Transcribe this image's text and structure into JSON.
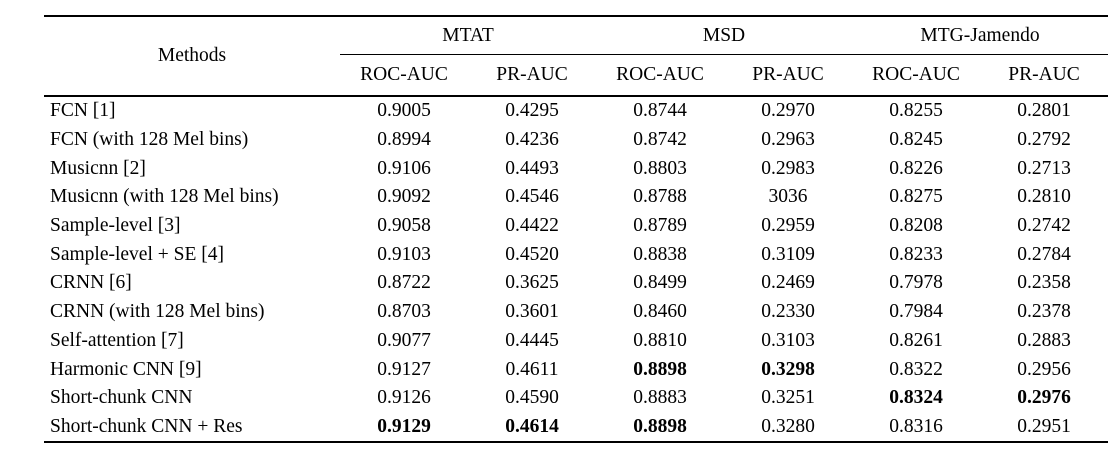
{
  "table": {
    "methods_header": "Methods",
    "groups": [
      {
        "label": "MTAT"
      },
      {
        "label": "MSD"
      },
      {
        "label": "MTG-Jamendo"
      }
    ],
    "subheaders": [
      "ROC-AUC",
      "PR-AUC",
      "ROC-AUC",
      "PR-AUC",
      "ROC-AUC",
      "PR-AUC"
    ],
    "rows": [
      {
        "method": "FCN [1]",
        "values": [
          "0.9005",
          "0.4295",
          "0.8744",
          "0.2970",
          "0.8255",
          "0.2801"
        ],
        "bold": []
      },
      {
        "method": "FCN (with 128 Mel bins)",
        "values": [
          "0.8994",
          "0.4236",
          "0.8742",
          "0.2963",
          "0.8245",
          "0.2792"
        ],
        "bold": []
      },
      {
        "method": "Musicnn [2]",
        "values": [
          "0.9106",
          "0.4493",
          "0.8803",
          "0.2983",
          "0.8226",
          "0.2713"
        ],
        "bold": []
      },
      {
        "method": "Musicnn (with 128 Mel bins)",
        "values": [
          "0.9092",
          "0.4546",
          "0.8788",
          "3036",
          "0.8275",
          "0.2810"
        ],
        "bold": []
      },
      {
        "method": "Sample-level [3]",
        "values": [
          "0.9058",
          "0.4422",
          "0.8789",
          "0.2959",
          "0.8208",
          "0.2742"
        ],
        "bold": []
      },
      {
        "method": "Sample-level + SE [4]",
        "values": [
          "0.9103",
          "0.4520",
          "0.8838",
          "0.3109",
          "0.8233",
          "0.2784"
        ],
        "bold": []
      },
      {
        "method": "CRNN [6]",
        "values": [
          "0.8722",
          "0.3625",
          "0.8499",
          "0.2469",
          "0.7978",
          "0.2358"
        ],
        "bold": []
      },
      {
        "method": "CRNN (with 128 Mel bins)",
        "values": [
          "0.8703",
          "0.3601",
          "0.8460",
          "0.2330",
          "0.7984",
          "0.2378"
        ],
        "bold": []
      },
      {
        "method": "Self-attention [7]",
        "values": [
          "0.9077",
          "0.4445",
          "0.8810",
          "0.3103",
          "0.8261",
          "0.2883"
        ],
        "bold": []
      },
      {
        "method": "Harmonic CNN [9]",
        "values": [
          "0.9127",
          "0.4611",
          "0.8898",
          "0.3298",
          "0.8322",
          "0.2956"
        ],
        "bold": [
          2,
          3
        ]
      },
      {
        "method": "Short-chunk CNN",
        "values": [
          "0.9126",
          "0.4590",
          "0.8883",
          "0.3251",
          "0.8324",
          "0.2976"
        ],
        "bold": [
          4,
          5
        ]
      },
      {
        "method": "Short-chunk CNN + Res",
        "values": [
          "0.9129",
          "0.4614",
          "0.8898",
          "0.3280",
          "0.8316",
          "0.2951"
        ],
        "bold": [
          0,
          1,
          2
        ]
      }
    ]
  },
  "colors": {
    "text": "#000000",
    "rule": "#000000",
    "background": "#ffffff"
  }
}
